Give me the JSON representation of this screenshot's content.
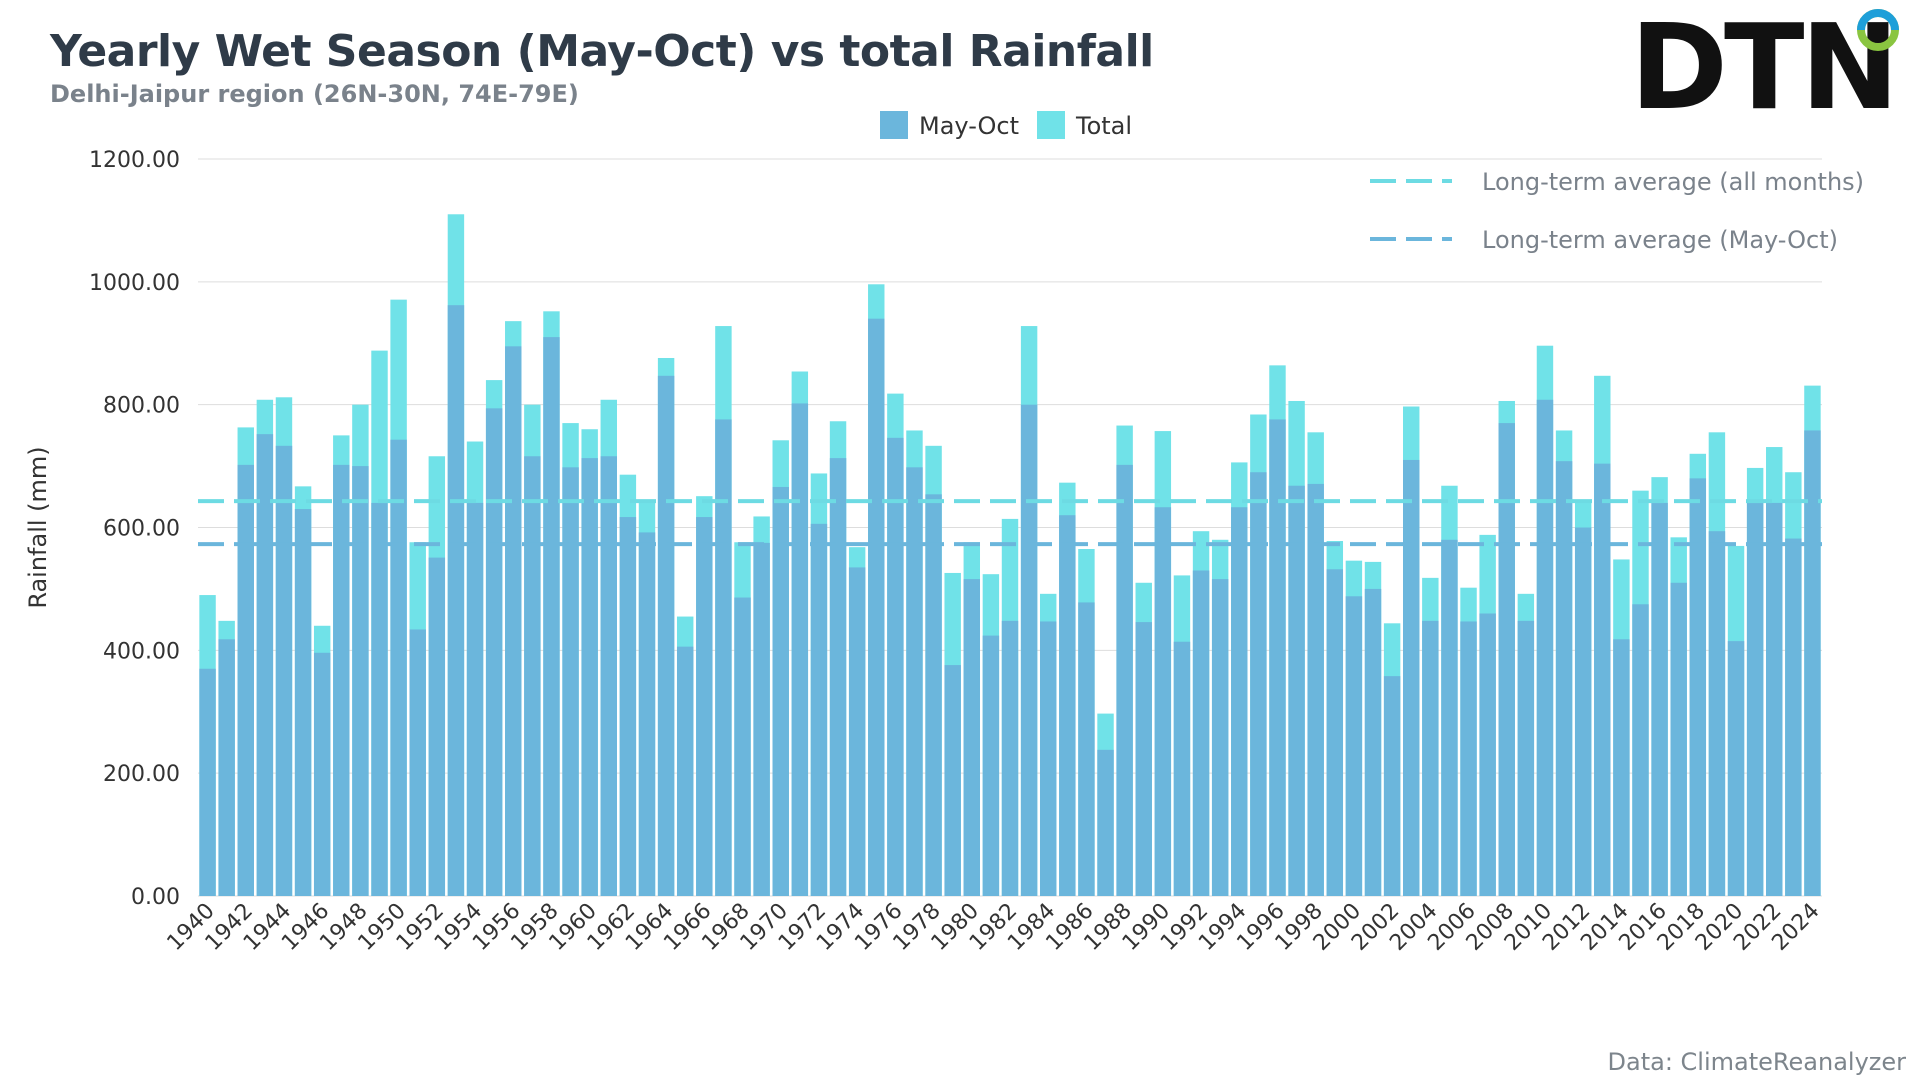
{
  "header": {
    "title": "Yearly Wet Season (May-Oct) vs total Rainfall",
    "subtitle": "Delhi-Jaipur region (26N-30N, 74E-79E)"
  },
  "logo": {
    "text": "DTN",
    "icon": "dtn-ring-logo"
  },
  "source": "Data: ClimateReanalyzer",
  "colors": {
    "may_oct": "#6bb6dc",
    "total": "#70e2e8",
    "avg_all": "#6ddbe3",
    "avg_may_oct": "#6bb6dc",
    "grid": "#dddddd",
    "axis_text": "#333333"
  },
  "chart_data": {
    "type": "bar",
    "stacked": "overlay",
    "ylabel": "Rainfall (mm)",
    "ylim": [
      0,
      1200
    ],
    "yticks": [
      "0.00",
      "200.00",
      "400.00",
      "600.00",
      "800.00",
      "1000.00",
      "1200.00"
    ],
    "grid": true,
    "legend": {
      "placement": "top-center",
      "entries": [
        "May-Oct",
        "Total"
      ]
    },
    "categories": [
      "1940",
      "1941",
      "1942",
      "1943",
      "1944",
      "1945",
      "1946",
      "1947",
      "1948",
      "1949",
      "1950",
      "1951",
      "1952",
      "1953",
      "1954",
      "1955",
      "1956",
      "1957",
      "1958",
      "1959",
      "1960",
      "1961",
      "1962",
      "1963",
      "1964",
      "1965",
      "1966",
      "1967",
      "1968",
      "1969",
      "1970",
      "1971",
      "1972",
      "1973",
      "1974",
      "1975",
      "1976",
      "1977",
      "1978",
      "1979",
      "1980",
      "1981",
      "1982",
      "1983",
      "1984",
      "1985",
      "1986",
      "1987",
      "1988",
      "1989",
      "1990",
      "1991",
      "1992",
      "1993",
      "1994",
      "1995",
      "1996",
      "1997",
      "1998",
      "1999",
      "2000",
      "2001",
      "2002",
      "2003",
      "2004",
      "2005",
      "2006",
      "2007",
      "2008",
      "2009",
      "2010",
      "2011",
      "2012",
      "2013",
      "2014",
      "2015",
      "2016",
      "2017",
      "2018",
      "2019",
      "2020",
      "2021",
      "2022",
      "2023",
      "2024"
    ],
    "series": [
      {
        "name": "May-Oct",
        "values": [
          370,
          418,
          702,
          752,
          733,
          630,
          396,
          702,
          700,
          640,
          743,
          434,
          551,
          962,
          640,
          794,
          895,
          716,
          910,
          698,
          713,
          716,
          617,
          592,
          847,
          406,
          617,
          776,
          486,
          575,
          666,
          802,
          606,
          713,
          535,
          940,
          746,
          698,
          654,
          376,
          516,
          424,
          448,
          800,
          447,
          620,
          478,
          238,
          702,
          446,
          633,
          414,
          530,
          516,
          633,
          690,
          776,
          668,
          671,
          532,
          488,
          500,
          358,
          710,
          448,
          580,
          447,
          460,
          770,
          448,
          808,
          708,
          600,
          704,
          418,
          475,
          640,
          510,
          680,
          594,
          415,
          640,
          640,
          582,
          758
        ]
      },
      {
        "name": "Total",
        "values": [
          490,
          448,
          763,
          808,
          812,
          667,
          440,
          750,
          800,
          888,
          971,
          576,
          716,
          1110,
          740,
          840,
          936,
          800,
          952,
          770,
          760,
          808,
          686,
          645,
          876,
          455,
          651,
          928,
          576,
          618,
          742,
          854,
          688,
          773,
          568,
          996,
          818,
          758,
          733,
          526,
          576,
          524,
          614,
          928,
          492,
          673,
          565,
          297,
          766,
          510,
          757,
          522,
          594,
          580,
          706,
          784,
          864,
          806,
          755,
          578,
          546,
          544,
          444,
          797,
          518,
          668,
          502,
          588,
          806,
          492,
          896,
          758,
          645,
          847,
          548,
          660,
          682,
          584,
          720,
          755,
          570,
          697,
          731,
          690,
          831
        ]
      }
    ],
    "reference_lines": [
      {
        "label": "Long-term average (all months)",
        "value": 643
      },
      {
        "label": "Long-term average (May-Oct)",
        "value": 573
      }
    ]
  }
}
